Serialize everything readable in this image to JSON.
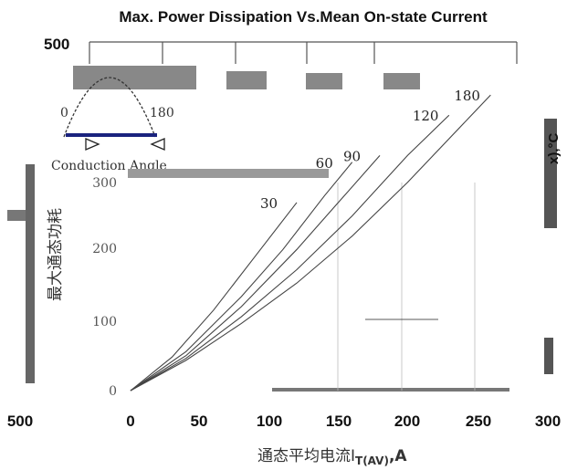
{
  "chart_data": {
    "type": "line",
    "title": "Max. Power Dissipation Vs.Mean On-state Current",
    "xlabel_main": "通态平均电流I",
    "xlabel_sub": "T(AV)",
    "xlabel_unit": ",A",
    "ylabel": "最大通态功耗",
    "right_axis_label": "x),°C",
    "top_left_value": "500",
    "x_ticks": [
      "500",
      "0",
      "50",
      "100",
      "150",
      "200",
      "250",
      "300"
    ],
    "y_ticks": [
      "0",
      "100",
      "200",
      "300"
    ],
    "xlim": [
      0,
      300
    ],
    "ylim": [
      0,
      500
    ],
    "series": [
      {
        "name": "180",
        "x": [
          0,
          40,
          80,
          120,
          160,
          200,
          260
        ],
        "y": [
          0,
          45,
          100,
          160,
          230,
          310,
          440
        ]
      },
      {
        "name": "120",
        "x": [
          0,
          40,
          80,
          120,
          160,
          200,
          230
        ],
        "y": [
          0,
          48,
          110,
          180,
          260,
          350,
          410
        ]
      },
      {
        "name": "90",
        "x": [
          0,
          40,
          80,
          120,
          150,
          180
        ],
        "y": [
          0,
          52,
          125,
          210,
          280,
          350
        ]
      },
      {
        "name": "60",
        "x": [
          0,
          40,
          80,
          110,
          140,
          160
        ],
        "y": [
          0,
          58,
          140,
          210,
          290,
          340
        ]
      },
      {
        "name": "30",
        "x": [
          0,
          30,
          60,
          90,
          120
        ],
        "y": [
          0,
          50,
          120,
          200,
          280
        ]
      }
    ],
    "inset": {
      "label_start": "0",
      "label_end": "180",
      "caption": "Conduction Angle"
    }
  }
}
